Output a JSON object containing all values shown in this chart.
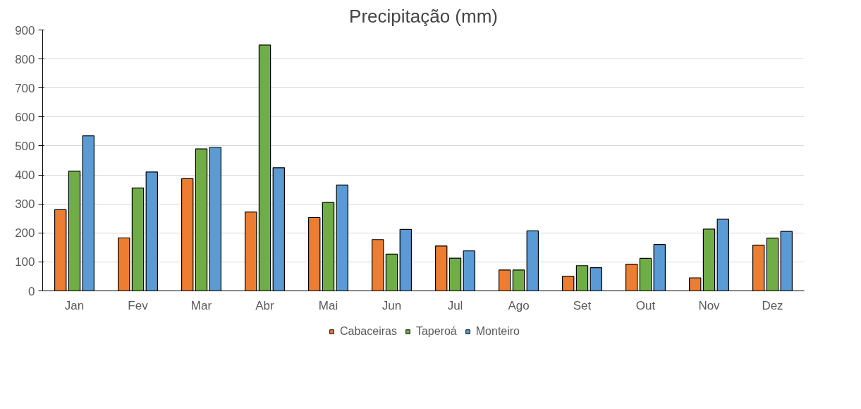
{
  "chart_data": {
    "type": "bar",
    "title": "Precipitação (mm)",
    "categories": [
      "Jan",
      "Fev",
      "Mar",
      "Abr",
      "Mai",
      "Jun",
      "Jul",
      "Ago",
      "Set",
      "Out",
      "Nov",
      "Dez"
    ],
    "series": [
      {
        "name": "Cabaceiras",
        "color": "#ed7d31",
        "values": [
          280,
          183,
          387,
          272,
          253,
          177,
          155,
          72,
          50,
          92,
          45,
          158
        ]
      },
      {
        "name": "Taperoá",
        "color": "#70ad47",
        "values": [
          413,
          355,
          490,
          848,
          305,
          127,
          113,
          72,
          87,
          112,
          213,
          182
        ]
      },
      {
        "name": "Monteiro",
        "color": "#5b9bd5",
        "values": [
          535,
          410,
          495,
          425,
          365,
          212,
          138,
          207,
          80,
          160,
          247,
          205
        ]
      }
    ],
    "ylim": [
      0,
      900
    ],
    "yticks": [
      0,
      100,
      200,
      300,
      400,
      500,
      600,
      700,
      800,
      900
    ],
    "grid": "y",
    "legend": "bottom"
  }
}
